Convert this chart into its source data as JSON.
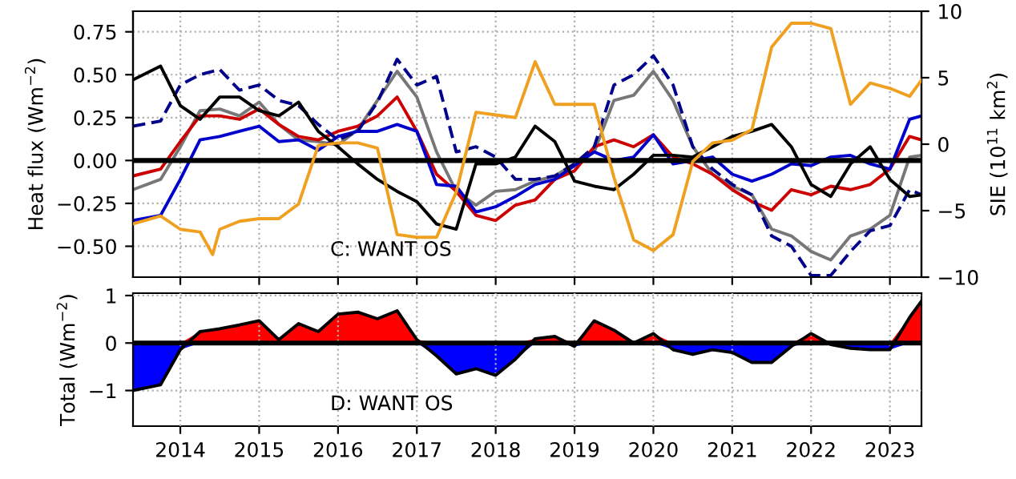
{
  "chart_data": [
    {
      "type": "line",
      "ylabel": "Heat flux (Wm$^{−2}$)",
      "y2label": "SIE (10$^{11}$ km$^{2}$)",
      "x": [
        2013.4,
        2013.75,
        2014.0,
        2014.25,
        2014.5,
        2014.75,
        2015.0,
        2015.25,
        2015.5,
        2015.75,
        2016.0,
        2016.25,
        2016.5,
        2016.75,
        2017.0,
        2017.25,
        2017.5,
        2017.75,
        2018.0,
        2018.25,
        2018.5,
        2018.75,
        2019.0,
        2019.25,
        2019.5,
        2019.75,
        2020.0,
        2020.25,
        2020.5,
        2020.75,
        2021.0,
        2021.25,
        2021.5,
        2021.75,
        2022.0,
        2022.25,
        2022.5,
        2022.75,
        2023.0,
        2023.25,
        2023.4
      ],
      "series": [
        {
          "color": "#f0a020",
          "axis": "y2",
          "x": [
            2013.4,
            2013.75,
            2014.0,
            2014.25,
            2014.41,
            2014.5,
            2014.75,
            2015.0,
            2015.25,
            2015.5,
            2015.75,
            2016.0,
            2016.25,
            2016.5,
            2016.75,
            2017.0,
            2017.25,
            2017.5,
            2017.75,
            2018.0,
            2018.25,
            2018.5,
            2018.75,
            2019.0,
            2019.25,
            2019.5,
            2019.75,
            2020.0,
            2020.25,
            2020.5,
            2020.75,
            2021.0,
            2021.25,
            2021.5,
            2021.75,
            2022.0,
            2022.25,
            2022.5,
            2022.75,
            2023.0,
            2023.25,
            2023.4
          ],
          "values": [
            -6.0,
            -5.4,
            -6.4,
            -6.6,
            -8.3,
            -6.4,
            -5.8,
            -5.6,
            -5.6,
            -4.5,
            -0.1,
            0.1,
            0.1,
            -0.3,
            -6.8,
            -7.0,
            -7.0,
            -3.6,
            2.4,
            2.2,
            2.0,
            6.2,
            3.0,
            3.0,
            3.0,
            -2.5,
            -7.2,
            -8.0,
            -6.8,
            -1.3,
            0.1,
            0.3,
            1.1,
            7.3,
            9.1,
            9.1,
            8.7,
            3.0,
            4.6,
            4.2,
            3.6,
            4.8
          ]
        },
        {
          "color": "#777777",
          "values": [
            -0.17,
            -0.11,
            0.08,
            0.29,
            0.3,
            0.26,
            0.34,
            0.21,
            0.12,
            0.11,
            0.09,
            0.18,
            0.35,
            0.52,
            0.37,
            0.05,
            -0.18,
            -0.26,
            -0.18,
            -0.17,
            -0.12,
            -0.09,
            -0.02,
            0.05,
            0.35,
            0.38,
            0.52,
            0.35,
            0.08,
            -0.08,
            -0.15,
            -0.2,
            -0.4,
            -0.44,
            -0.53,
            -0.58,
            -0.44,
            -0.4,
            -0.32,
            0.02,
            0.03
          ]
        },
        {
          "color": "#cc0000",
          "values": [
            -0.09,
            -0.05,
            0.11,
            0.26,
            0.26,
            0.24,
            0.3,
            0.21,
            0.14,
            0.12,
            0.17,
            0.2,
            0.26,
            0.37,
            0.17,
            -0.08,
            -0.18,
            -0.32,
            -0.35,
            -0.26,
            -0.23,
            -0.11,
            -0.06,
            0.08,
            0.12,
            0.08,
            0.15,
            0.02,
            -0.02,
            -0.08,
            -0.17,
            -0.24,
            -0.29,
            -0.17,
            -0.2,
            -0.15,
            -0.17,
            -0.14,
            -0.05,
            0.14,
            0.12
          ]
        },
        {
          "color": "#0000cc",
          "values": [
            -0.35,
            -0.32,
            -0.11,
            0.12,
            0.14,
            0.17,
            0.2,
            0.11,
            0.12,
            0.06,
            0.14,
            0.17,
            0.17,
            0.21,
            0.17,
            -0.14,
            -0.15,
            -0.3,
            -0.27,
            -0.21,
            -0.14,
            -0.11,
            -0.03,
            0.05,
            0.0,
            0.02,
            0.15,
            -0.02,
            0.0,
            0.02,
            -0.08,
            -0.12,
            -0.08,
            -0.02,
            -0.03,
            0.02,
            0.03,
            -0.02,
            -0.05,
            0.24,
            0.26
          ]
        },
        {
          "color": "#00008b",
          "line_style": "dashed",
          "values": [
            0.2,
            0.23,
            0.44,
            0.5,
            0.53,
            0.41,
            0.44,
            0.35,
            0.32,
            0.21,
            0.12,
            0.17,
            0.34,
            0.59,
            0.44,
            0.49,
            0.05,
            0.08,
            0.02,
            -0.11,
            -0.11,
            -0.09,
            -0.02,
            0.08,
            0.44,
            0.5,
            0.61,
            0.44,
            0.08,
            -0.05,
            -0.14,
            -0.2,
            -0.44,
            -0.5,
            -0.67,
            -0.67,
            -0.53,
            -0.41,
            -0.38,
            -0.17,
            -0.2
          ]
        },
        {
          "color": "#000000",
          "values": [
            0.47,
            0.55,
            0.32,
            0.24,
            0.37,
            0.37,
            0.29,
            0.26,
            0.34,
            0.17,
            0.08,
            -0.02,
            -0.11,
            -0.18,
            -0.24,
            -0.37,
            -0.4,
            -0.02,
            -0.02,
            0.02,
            0.2,
            0.11,
            -0.12,
            -0.15,
            -0.17,
            -0.08,
            0.03,
            0.03,
            0.02,
            0.08,
            0.14,
            0.17,
            0.21,
            0.08,
            -0.14,
            -0.21,
            -0.02,
            0.08,
            -0.11,
            -0.21,
            -0.2
          ]
        }
      ],
      "xlim": [
        2013.4,
        2023.4
      ],
      "xticks": [
        2014,
        2015,
        2016,
        2017,
        2018,
        2019,
        2020,
        2021,
        2022,
        2023
      ],
      "ylim": [
        -0.68,
        0.87
      ],
      "yticks": [
        {
          "value": -0.5,
          "label": "−0.50"
        },
        {
          "value": -0.25,
          "label": "−0.25"
        },
        {
          "value": 0,
          "label": "0.00"
        },
        {
          "value": 0.25,
          "label": "0.25"
        },
        {
          "value": 0.5,
          "label": "0.50"
        },
        {
          "value": 0.75,
          "label": "0.75"
        }
      ],
      "y2lim": [
        -10,
        10
      ],
      "y2ticks": [
        {
          "value": -10,
          "label": "−10"
        },
        {
          "value": -5,
          "label": "−5"
        },
        0,
        5,
        10
      ],
      "ref_lines": [
        {
          "axis": "y",
          "value": 0,
          "color": "#000000"
        }
      ],
      "annotations": [
        "C: WANT OS"
      ],
      "grid": true,
      "tick_labels": "y"
    },
    {
      "type": "area",
      "ylabel": "Total (Wm$^{−2}$)",
      "x": [
        2013.4,
        2013.75,
        2014.0,
        2014.25,
        2014.5,
        2014.75,
        2015.0,
        2015.25,
        2015.5,
        2015.75,
        2016.0,
        2016.25,
        2016.5,
        2016.75,
        2017.0,
        2017.25,
        2017.5,
        2017.75,
        2018.0,
        2018.25,
        2018.5,
        2018.75,
        2019.0,
        2019.25,
        2019.5,
        2019.75,
        2020.0,
        2020.25,
        2020.5,
        2020.75,
        2021.0,
        2021.25,
        2021.5,
        2021.75,
        2022.0,
        2022.25,
        2022.5,
        2022.75,
        2023.0,
        2023.25,
        2023.4
      ],
      "series": [
        {
          "color": "#ff0000",
          "values": [
            0,
            0,
            0,
            0.24,
            0.3,
            0.38,
            0.47,
            0.07,
            0.41,
            0.24,
            0.61,
            0.65,
            0.51,
            0.68,
            0.07,
            0,
            0,
            0,
            0,
            0,
            0.09,
            0.14,
            0,
            0.47,
            0.27,
            0.0,
            0.2,
            0,
            0,
            0,
            0,
            0,
            0,
            0,
            0.2,
            0,
            0,
            0,
            0,
            0.54,
            0.88
          ]
        },
        {
          "color": "#0000ff",
          "values": [
            -1.0,
            -0.88,
            -0.14,
            0,
            0,
            0,
            0,
            0,
            0,
            0,
            0,
            0,
            0,
            0,
            0,
            -0.27,
            -0.65,
            -0.54,
            -0.68,
            -0.34,
            0,
            0,
            -0.07,
            0,
            0,
            0,
            0,
            -0.14,
            -0.24,
            -0.14,
            -0.2,
            -0.41,
            -0.41,
            -0.07,
            0,
            -0.03,
            -0.11,
            -0.14,
            -0.14,
            0,
            0
          ]
        },
        {
          "type": "line",
          "color": "#000000",
          "values": [
            -1.0,
            -0.88,
            -0.14,
            0.24,
            0.3,
            0.38,
            0.47,
            0.07,
            0.41,
            0.24,
            0.61,
            0.65,
            0.51,
            0.68,
            0.07,
            -0.27,
            -0.65,
            -0.54,
            -0.68,
            -0.34,
            0.09,
            0.14,
            -0.07,
            0.47,
            0.27,
            0.0,
            0.2,
            -0.14,
            -0.24,
            -0.14,
            -0.2,
            -0.41,
            -0.41,
            -0.07,
            0.2,
            -0.03,
            -0.11,
            -0.14,
            -0.14,
            0.54,
            0.88
          ]
        }
      ],
      "xlim": [
        2013.4,
        2023.4
      ],
      "xticks": [
        2014,
        2015,
        2016,
        2017,
        2018,
        2019,
        2020,
        2021,
        2022,
        2023
      ],
      "ylim": [
        -1.75,
        1.05
      ],
      "yticks": [
        {
          "value": -1,
          "label": "−1"
        },
        0,
        1
      ],
      "ref_lines": [
        {
          "axis": "y",
          "value": 0,
          "color": "#000000"
        }
      ],
      "annotations": [
        "D: WANT OS"
      ],
      "grid": true
    }
  ]
}
